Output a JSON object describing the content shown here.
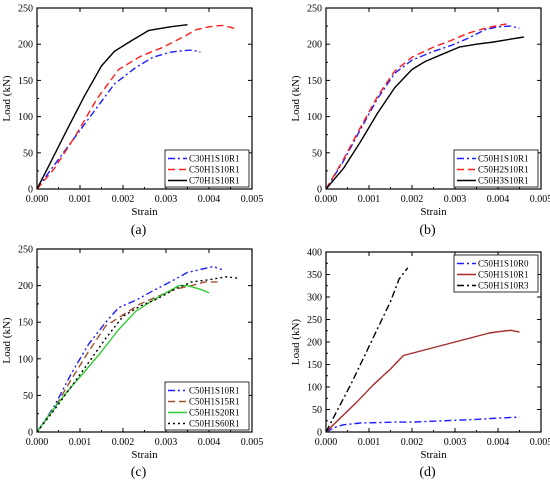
{
  "chart_data": [
    {
      "panel_label": "(a)",
      "type": "line",
      "xlabel": "Strain",
      "ylabel": "Load (kN)",
      "xlim": [
        0,
        0.005
      ],
      "ylim": [
        0,
        250
      ],
      "xticks": [
        "0.000",
        "0.001",
        "0.002",
        "0.003",
        "0.004",
        "0.005"
      ],
      "yticks": [
        "0",
        "50",
        "100",
        "150",
        "200",
        "250"
      ],
      "legend_position": "bottom-right",
      "series": [
        {
          "name": "C30H1S10R1",
          "color": "#1c1cff",
          "dash": "dashdot",
          "x": [
            0,
            0.0003,
            0.0008,
            0.0013,
            0.0018,
            0.0023,
            0.0027,
            0.0031,
            0.0034,
            0.0036,
            0.0038
          ],
          "y": [
            0,
            25,
            65,
            105,
            145,
            168,
            182,
            189,
            191,
            192,
            189
          ]
        },
        {
          "name": "C50H1S10R1",
          "color": "#ff1c1c",
          "dash": "dashed",
          "x": [
            0,
            0.0004,
            0.0009,
            0.0014,
            0.0019,
            0.0024,
            0.0029,
            0.0034,
            0.0037,
            0.004,
            0.0043,
            0.0046
          ],
          "y": [
            0,
            28,
            74,
            125,
            165,
            183,
            195,
            210,
            220,
            224,
            226,
            222
          ]
        },
        {
          "name": "C70H1S10R1",
          "color": "#000000",
          "dash": "solid",
          "x": [
            0,
            0.0003,
            0.0007,
            0.0011,
            0.0015,
            0.0018,
            0.0022,
            0.0026,
            0.0031,
            0.0035
          ],
          "y": [
            0,
            35,
            82,
            128,
            170,
            190,
            205,
            219,
            224,
            227
          ]
        }
      ]
    },
    {
      "panel_label": "(b)",
      "type": "line",
      "xlabel": "Strain",
      "ylabel": "Load (kN)",
      "xlim": [
        0,
        0.005
      ],
      "ylim": [
        0,
        250
      ],
      "xticks": [
        "0.000",
        "0.001",
        "0.002",
        "0.003",
        "0.004",
        "0.005"
      ],
      "yticks": [
        "0",
        "50",
        "100",
        "150",
        "200",
        "250"
      ],
      "legend_position": "bottom-right",
      "series": [
        {
          "name": "C50H1S10R1",
          "color": "#1c1cff",
          "dash": "dashdot",
          "x": [
            0,
            0.0004,
            0.0008,
            0.0012,
            0.0016,
            0.002,
            0.0025,
            0.0029,
            0.0033,
            0.0037,
            0.004,
            0.0043,
            0.0045
          ],
          "y": [
            0,
            38,
            82,
            125,
            160,
            178,
            190,
            198,
            208,
            220,
            224,
            225,
            222
          ]
        },
        {
          "name": "C50H2S10R1",
          "color": "#ff1c1c",
          "dash": "dashed",
          "x": [
            0,
            0.0004,
            0.0008,
            0.0012,
            0.0016,
            0.002,
            0.0025,
            0.0029,
            0.0033,
            0.0037,
            0.004,
            0.0042
          ],
          "y": [
            0,
            40,
            85,
            128,
            163,
            182,
            196,
            205,
            215,
            222,
            226,
            228
          ]
        },
        {
          "name": "C50H3S10R1",
          "color": "#000000",
          "dash": "solid",
          "x": [
            0,
            0.0004,
            0.0008,
            0.0012,
            0.0016,
            0.002,
            0.0023,
            0.0027,
            0.0031,
            0.0035,
            0.0039,
            0.0043,
            0.0046
          ],
          "y": [
            0,
            28,
            65,
            105,
            140,
            165,
            176,
            186,
            196,
            200,
            203,
            207,
            210
          ]
        }
      ]
    },
    {
      "panel_label": "(c)",
      "type": "line",
      "xlabel": "Strain",
      "ylabel": "Load (kN)",
      "xlim": [
        0,
        0.005
      ],
      "ylim": [
        0,
        250
      ],
      "xticks": [
        "0.000",
        "0.001",
        "0.002",
        "0.003",
        "0.004",
        "0.005"
      ],
      "yticks": [
        "0",
        "50",
        "100",
        "150",
        "200",
        "250"
      ],
      "legend_position": "bottom-right",
      "series": [
        {
          "name": "C50H1S10R1",
          "color": "#1c1cff",
          "dash": "dashdotdot",
          "x": [
            0,
            0.0004,
            0.0008,
            0.0012,
            0.0016,
            0.0019,
            0.0023,
            0.0027,
            0.0031,
            0.0035,
            0.0038,
            0.0041,
            0.0043
          ],
          "y": [
            0,
            35,
            80,
            120,
            150,
            170,
            180,
            193,
            205,
            218,
            222,
            226,
            222
          ]
        },
        {
          "name": "C50H1S15R1",
          "color": "#a0522d",
          "dash": "dashed",
          "x": [
            0,
            0.0004,
            0.0008,
            0.0012,
            0.0016,
            0.002,
            0.0024,
            0.0028,
            0.0032,
            0.0036,
            0.0039,
            0.0042
          ],
          "y": [
            0,
            32,
            72,
            110,
            145,
            160,
            175,
            185,
            195,
            200,
            205,
            205
          ]
        },
        {
          "name": "C50H1S20R1",
          "color": "#33cc33",
          "dash": "solid",
          "x": [
            0,
            0.0003,
            0.0007,
            0.0011,
            0.0015,
            0.0019,
            0.0023,
            0.0027,
            0.003,
            0.0033,
            0.0035,
            0.0038,
            0.004
          ],
          "y": [
            0,
            25,
            55,
            82,
            110,
            140,
            165,
            180,
            190,
            200,
            200,
            195,
            190
          ]
        },
        {
          "name": "C50H1S60R1",
          "color": "#000000",
          "dash": "dotted",
          "x": [
            0,
            0.0004,
            0.0008,
            0.0012,
            0.0016,
            0.002,
            0.0024,
            0.0028,
            0.0032,
            0.0036,
            0.004,
            0.0044,
            0.0047
          ],
          "y": [
            0,
            30,
            62,
            95,
            128,
            158,
            172,
            182,
            195,
            205,
            208,
            212,
            210
          ]
        }
      ]
    },
    {
      "panel_label": "(d)",
      "type": "line",
      "xlabel": "Strain",
      "ylabel": "Load (kN)",
      "xlim": [
        0,
        0.005
      ],
      "ylim": [
        0,
        400
      ],
      "xticks": [
        "0.000",
        "0.001",
        "0.002",
        "0.003",
        "0.004",
        "0.005"
      ],
      "yticks": [
        "0",
        "50",
        "100",
        "150",
        "200",
        "250",
        "300",
        "350",
        "400"
      ],
      "legend_position": "top-right",
      "series": [
        {
          "name": "C50H1S10R0",
          "color": "#1c1cff",
          "dash": "dashdot",
          "x": [
            0,
            0.0002,
            0.0004,
            0.0008,
            0.0012,
            0.0016,
            0.002,
            0.0025,
            0.003,
            0.0035,
            0.004,
            0.0045
          ],
          "y": [
            0,
            10,
            16,
            20,
            21,
            22,
            22,
            24,
            26,
            28,
            31,
            33
          ]
        },
        {
          "name": "C50H1S10R1",
          "color": "#a52a2a",
          "dash": "solid",
          "x": [
            0,
            0.0003,
            0.0007,
            0.0011,
            0.0015,
            0.0018,
            0.0022,
            0.0026,
            0.003,
            0.0034,
            0.0038,
            0.0041,
            0.0043,
            0.0045
          ],
          "y": [
            0,
            28,
            65,
            105,
            140,
            170,
            180,
            190,
            200,
            210,
            220,
            224,
            226,
            222
          ]
        },
        {
          "name": "C50H1S10R3",
          "color": "#000000",
          "dash": "dashdot",
          "x": [
            0,
            0.0003,
            0.0006,
            0.0009,
            0.0012,
            0.0015,
            0.0017,
            0.0019
          ],
          "y": [
            0,
            55,
            110,
            170,
            230,
            290,
            340,
            365
          ]
        }
      ]
    }
  ]
}
